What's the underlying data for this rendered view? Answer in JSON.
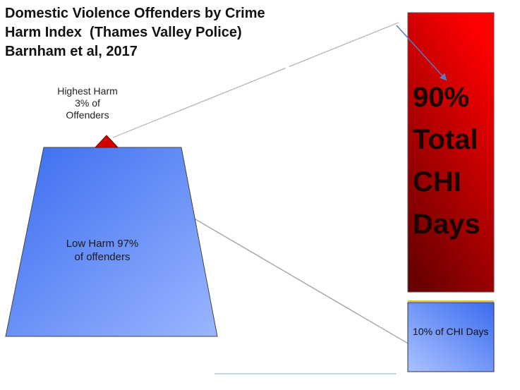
{
  "title": {
    "line1": "Domestic Violence Offenders by Crime",
    "line2": "Harm Index  (Thames Valley Police)",
    "line3": "Barnham et al, 2017"
  },
  "pyramid": {
    "top": {
      "label_lines": [
        "Highest Harm",
        "3% of",
        "Offenders"
      ],
      "color": "#d40000"
    },
    "base": {
      "label_lines": [
        "Low Harm 97%",
        "of offenders"
      ],
      "color_start": "#3a6cf0",
      "color_end": "#9ab6ff"
    }
  },
  "bars": {
    "high": {
      "label_lines": [
        "90%",
        "Total",
        "CHI",
        "Days"
      ],
      "color_start": "#ff0000",
      "color_end": "#6a0000"
    },
    "low": {
      "label": "10% of CHI Days",
      "color_start": "#3a6cf0",
      "color_end": "#aac2ff"
    }
  },
  "connectors": {
    "line_color": "#b0b0b0",
    "arrow_color": "#5a7bbf"
  }
}
